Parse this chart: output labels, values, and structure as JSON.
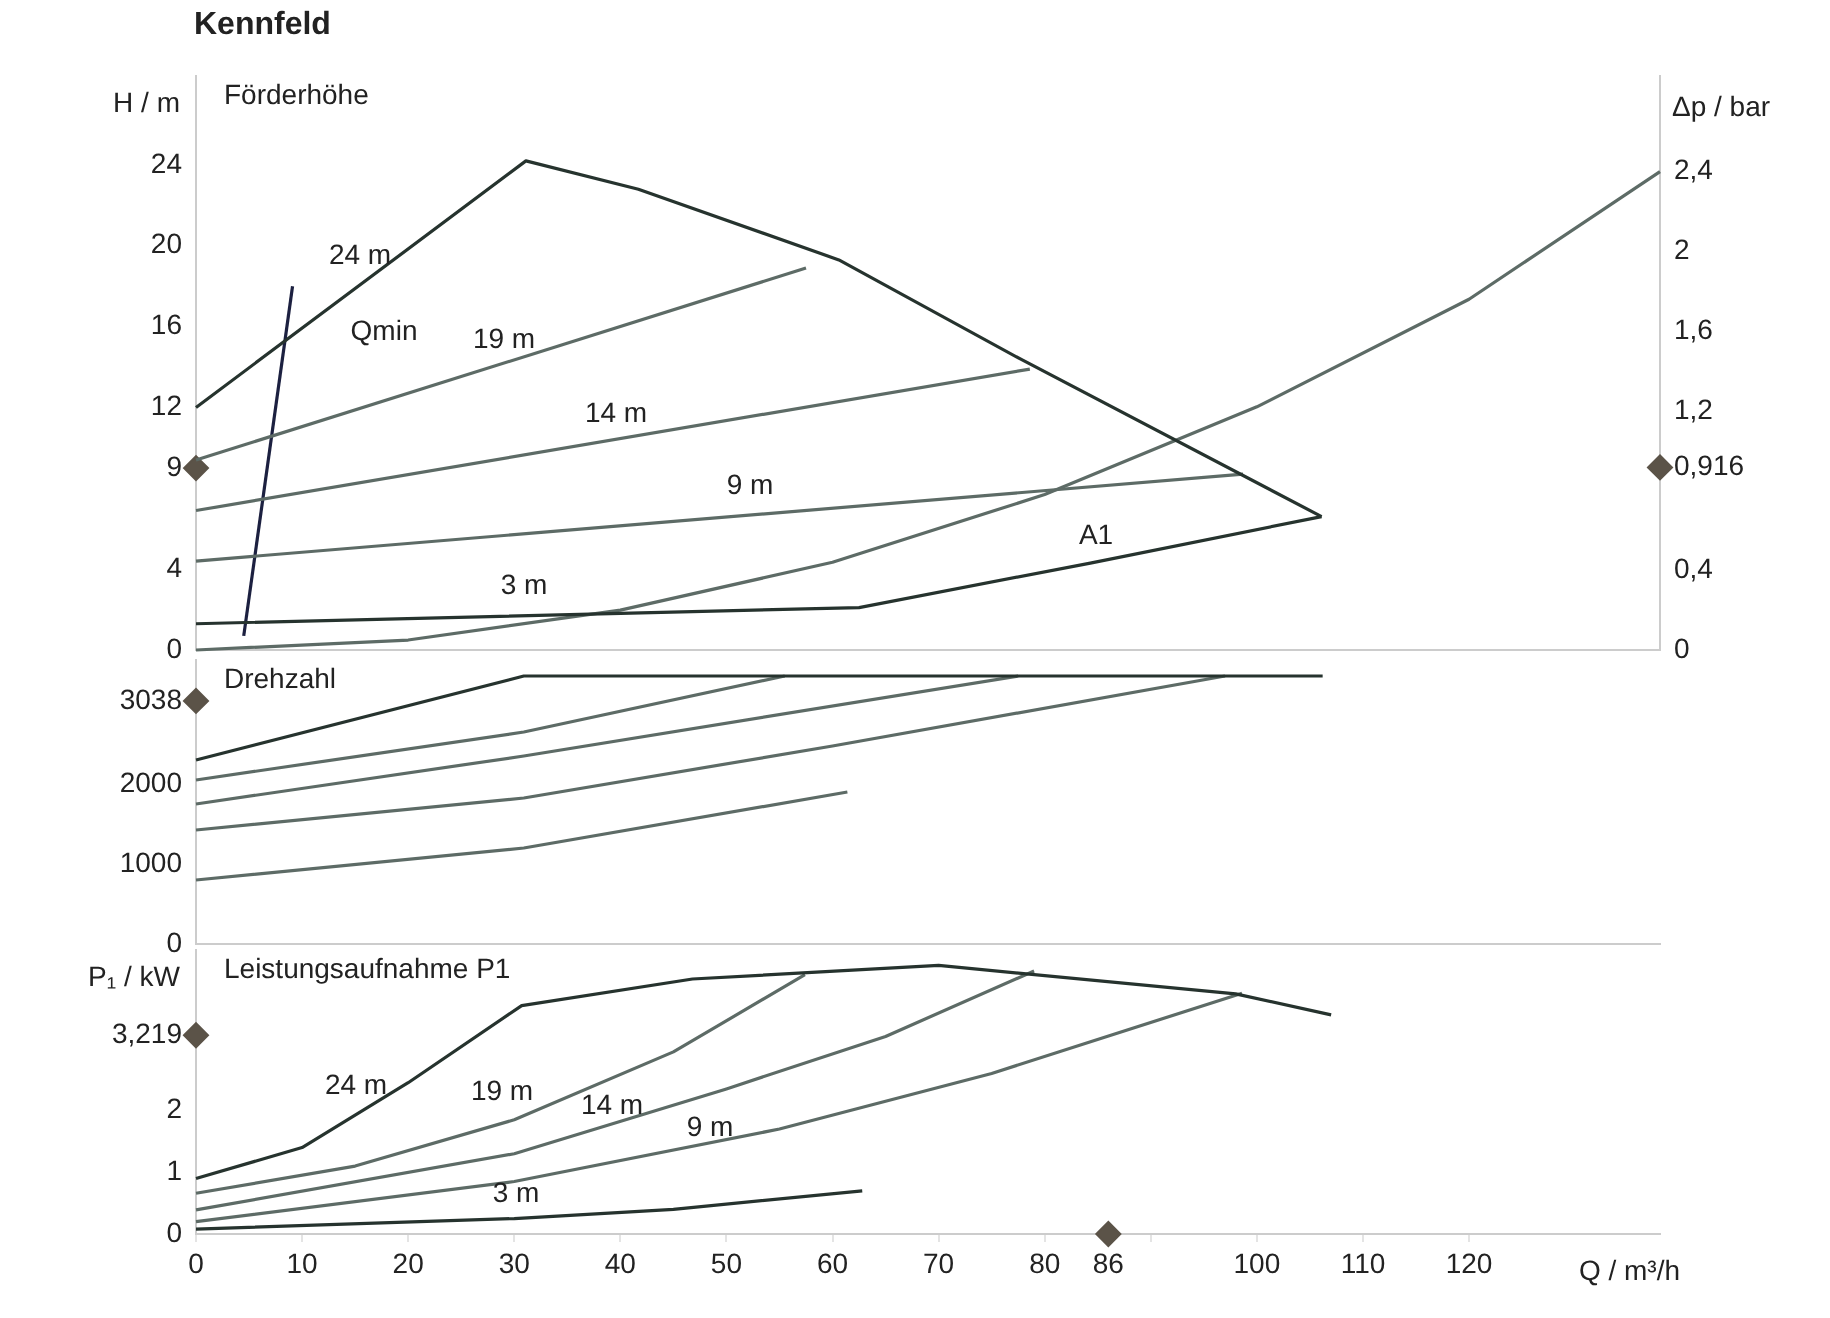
{
  "chart_data": [
    {
      "type": "line",
      "title": "Kennfeld",
      "subtitle": "Förderhöhe",
      "ylabel": "H / m",
      "y2label": "Δp / bar",
      "xlim": [
        0,
        138
      ],
      "ylim": [
        0,
        28.4
      ],
      "yticks": [
        0,
        4,
        9,
        12,
        16,
        20,
        24
      ],
      "y2lim": [
        0,
        2.88
      ],
      "y2ticks": [
        0,
        {
          "value": 0.4,
          "label": "0,4"
        },
        {
          "value": 0.916,
          "label": "0,916"
        },
        {
          "value": 1.2,
          "label": "1,2"
        },
        {
          "value": 1.6,
          "label": "1,6"
        },
        2,
        {
          "value": 2.4,
          "label": "2,4"
        }
      ],
      "tick_labels": "y",
      "grid": false,
      "marker": "none",
      "series": [
        {
          "type": "line",
          "color": "#26332e",
          "x": [
            0,
            31.1,
            41.7,
            60.6,
            77.7,
            106.1
          ],
          "values": [
            12,
            24.2,
            22.8,
            19.3,
            14.4,
            6.6
          ]
        },
        {
          "type": "line",
          "color": "#26332e",
          "x": [
            0,
            62.5,
            84.3,
            106.1
          ],
          "values": [
            1.3,
            2.1,
            4.3,
            6.6
          ]
        },
        {
          "type": "line",
          "color": "#5d6b66",
          "x": [
            0,
            57.5
          ],
          "values": [
            9.4,
            18.9
          ]
        },
        {
          "type": "line",
          "color": "#5d6b66",
          "x": [
            0,
            78.6
          ],
          "values": [
            6.9,
            13.9
          ]
        },
        {
          "type": "line",
          "color": "#5d6b66",
          "x": [
            0,
            98.7
          ],
          "values": [
            4.4,
            8.7
          ]
        },
        {
          "type": "line",
          "color": "#1c2040",
          "x": [
            4.5,
            9.1
          ],
          "values": [
            0.7,
            18
          ]
        },
        {
          "type": "line",
          "color": "#5d6b66",
          "axis": "y2",
          "x": [
            0,
            20,
            40,
            60,
            80,
            100,
            120,
            138
          ],
          "values": [
            0,
            0.05,
            0.2,
            0.44,
            0.78,
            1.22,
            1.76,
            2.4
          ]
        },
        {
          "type": "scatter",
          "marker": "diamond",
          "color": "#5b5348",
          "x": [
            0
          ],
          "values": [
            9
          ]
        },
        {
          "type": "scatter",
          "marker": "diamond",
          "color": "#5b5348",
          "axis": "y2",
          "x": [
            138
          ],
          "values": [
            0.916
          ]
        }
      ],
      "annotations": [
        "24 m",
        "Qmin",
        "19 m",
        "14 m",
        "9 m",
        "3 m",
        "A1"
      ]
    },
    {
      "type": "line",
      "title": "Drehzahl",
      "xlim": [
        0,
        138
      ],
      "ylim": [
        0,
        3550
      ],
      "yticks": [
        0,
        1000,
        2000,
        3038
      ],
      "tick_labels": "y",
      "grid": false,
      "marker": "none",
      "series": [
        {
          "type": "line",
          "color": "#26332e",
          "x": [
            0,
            30.9,
            106.2
          ],
          "values": [
            2300,
            3350,
            3350
          ]
        },
        {
          "type": "line",
          "color": "#5d6b66",
          "x": [
            0,
            30.9,
            55.5
          ],
          "values": [
            2050,
            2650,
            3350
          ]
        },
        {
          "type": "line",
          "color": "#5d6b66",
          "x": [
            0,
            30.9,
            77.5
          ],
          "values": [
            1750,
            2350,
            3350
          ]
        },
        {
          "type": "line",
          "color": "#5d6b66",
          "x": [
            0,
            30.9,
            60,
            97
          ],
          "values": [
            1425,
            1825,
            2475,
            3350
          ]
        },
        {
          "type": "line",
          "color": "#5d6b66",
          "x": [
            0,
            30.9,
            61.4
          ],
          "values": [
            800,
            1200,
            1900
          ]
        },
        {
          "type": "scatter",
          "marker": "diamond",
          "color": "#5b5348",
          "x": [
            0
          ],
          "values": [
            3038
          ]
        }
      ]
    },
    {
      "type": "line",
      "title": "Leistungsaufnahme P1",
      "xlabel": "Q / m³/h",
      "ylabel": "P₁ / kW",
      "xlim": [
        0,
        138
      ],
      "ylim": [
        0,
        4.6
      ],
      "yticks": [
        0,
        1,
        2,
        {
          "value": 3.219,
          "label": "3,219"
        }
      ],
      "xticks": [
        0,
        10,
        20,
        30,
        40,
        50,
        60,
        70,
        80,
        86,
        {
          "value": 90,
          "label": null
        },
        100,
        110,
        120
      ],
      "grid": false,
      "marker": "none",
      "series": [
        {
          "type": "line",
          "color": "#26332e",
          "x": [
            0,
            10,
            20,
            30.7,
            46.8,
            70,
            98,
            107
          ],
          "values": [
            0.9,
            1.4,
            2.45,
            3.7,
            4.13,
            4.35,
            3.89,
            3.55
          ]
        },
        {
          "type": "line",
          "color": "#5d6b66",
          "x": [
            0,
            15,
            30,
            45,
            57.4
          ],
          "values": [
            0.66,
            1.1,
            1.85,
            2.95,
            4.2
          ]
        },
        {
          "type": "line",
          "color": "#5d6b66",
          "x": [
            0,
            30,
            50,
            65,
            79
          ],
          "values": [
            0.39,
            1.3,
            2.35,
            3.2,
            4.26
          ]
        },
        {
          "type": "line",
          "color": "#5d6b66",
          "x": [
            0,
            30,
            55,
            75,
            98.6
          ],
          "values": [
            0.2,
            0.85,
            1.7,
            2.6,
            3.9
          ]
        },
        {
          "type": "line",
          "color": "#26332e",
          "x": [
            0,
            30,
            45,
            62.8
          ],
          "values": [
            0.08,
            0.25,
            0.4,
            0.7
          ]
        },
        {
          "type": "scatter",
          "marker": "diamond",
          "color": "#5b5348",
          "x": [
            0
          ],
          "values": [
            3.219
          ]
        },
        {
          "type": "scatter",
          "marker": "diamond",
          "color": "#5b5348",
          "x": [
            86
          ],
          "values": [
            0
          ]
        }
      ],
      "annotations": [
        "24 m",
        "19 m",
        "14 m",
        "9 m",
        "3 m"
      ]
    }
  ]
}
